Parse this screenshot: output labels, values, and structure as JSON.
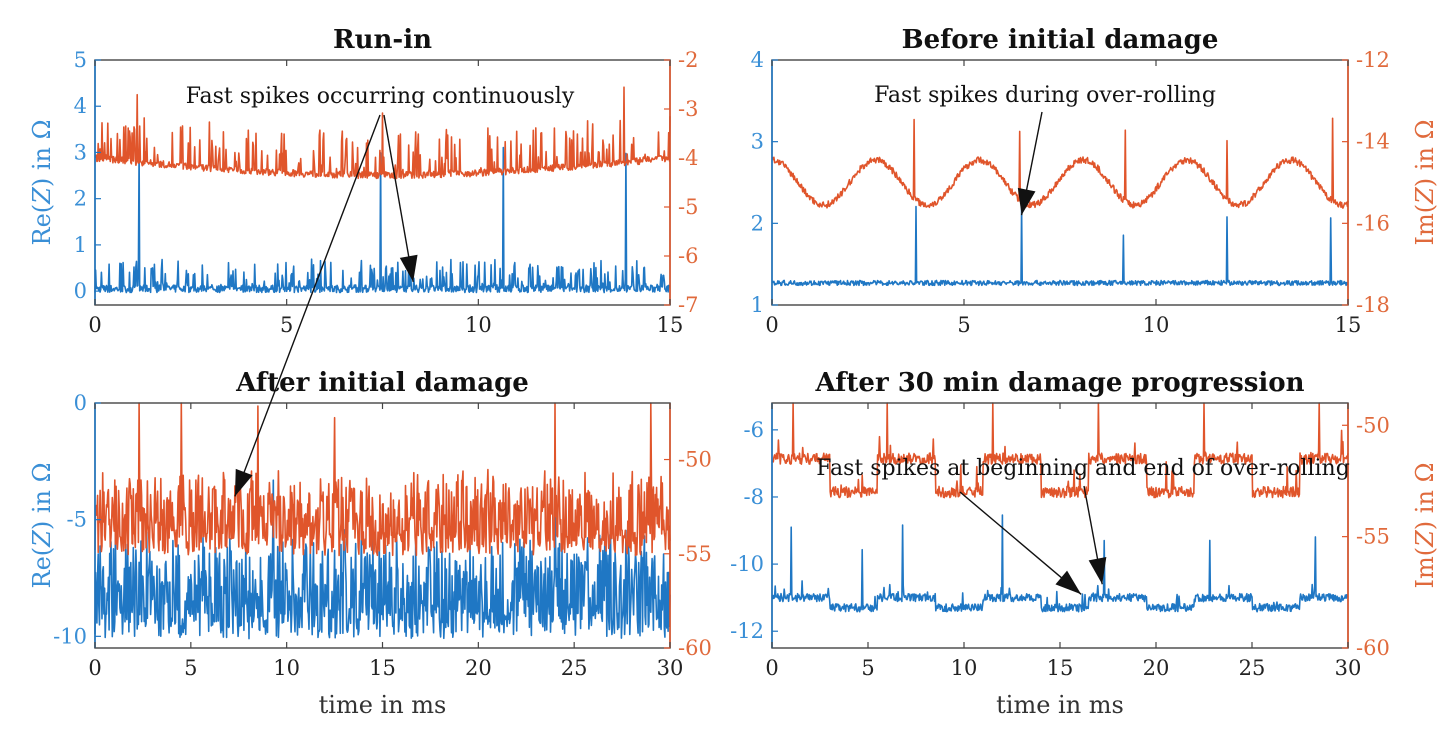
{
  "colors": {
    "left": "#1f77c4",
    "right": "#e0552b",
    "left_tick": "#3a8fd6",
    "right_tick": "#e06a3c",
    "frame": "#444444"
  },
  "chart_data": [
    {
      "type": "line",
      "title": "Run-in",
      "xlabel": "",
      "ylabel_left": "Re(Z) in Ω",
      "ylabel_right": "",
      "xlim": [
        0,
        15
      ],
      "xticks": [
        "0",
        "5",
        "10",
        "15"
      ],
      "ylim_left": [
        -0.3,
        5
      ],
      "yticks_left": [
        "0",
        "1",
        "2",
        "3",
        "4",
        "5"
      ],
      "ylim_right": [
        -7,
        -2
      ],
      "yticks_right": [
        "-7",
        "-6",
        "-5",
        "-4",
        "-3",
        "-2"
      ],
      "series": [
        {
          "name": "Re(Z)",
          "axis": "left",
          "base": 0.05,
          "noise": 0.08,
          "spike_rate": 0.25,
          "spike_amp": 0.6,
          "big_spikes": [
            [
              1.15,
              2.9
            ],
            [
              7.45,
              2.9
            ],
            [
              10.65,
              2.7
            ],
            [
              13.85,
              2.9
            ]
          ]
        },
        {
          "name": "Im(Z)",
          "axis": "right",
          "base": -4.0,
          "noise": 0.07,
          "spike_rate": 0.2,
          "spike_amp": 0.9,
          "dip": -0.35,
          "big_spikes": [
            [
              1.1,
              1.4
            ],
            [
              7.5,
              1.3
            ],
            [
              13.8,
              1.6
            ],
            [
              4.2,
              0.8
            ]
          ]
        }
      ],
      "annotation": {
        "text": "Fast spikes occurring continuously",
        "point": [
          8.3,
          0.2
        ]
      }
    },
    {
      "type": "line",
      "title": "Before initial damage",
      "xlabel": "",
      "ylabel_left": "",
      "ylabel_right": "Im(Z) in Ω",
      "xlim": [
        0,
        15
      ],
      "xticks": [
        "0",
        "5",
        "10",
        "15"
      ],
      "ylim_left": [
        1,
        4
      ],
      "yticks_left": [
        "1",
        "2",
        "3",
        "4"
      ],
      "ylim_right": [
        -18,
        -12
      ],
      "yticks_right": [
        "-18",
        "-16",
        "-14",
        "-12"
      ],
      "series": [
        {
          "name": "Re(Z)",
          "axis": "left",
          "base": 1.27,
          "noise": 0.03,
          "spike_rate": 0.0,
          "spike_amp": 0.05,
          "big_spikes": [
            [
              3.75,
              0.95
            ],
            [
              6.5,
              0.95
            ],
            [
              9.15,
              0.6
            ],
            [
              11.85,
              0.8
            ],
            [
              14.55,
              0.8
            ]
          ]
        },
        {
          "name": "Im(Z)",
          "axis": "right",
          "base": -15.0,
          "noise": 0.08,
          "spike_rate": 0.0,
          "spike_amp": 0.2,
          "wave": 0.55,
          "big_spikes": [
            [
              3.7,
              2.0
            ],
            [
              6.45,
              1.6
            ],
            [
              9.2,
              1.7
            ],
            [
              11.85,
              1.5
            ],
            [
              14.6,
              2.1
            ]
          ]
        }
      ],
      "annotation": {
        "text": "Fast spikes during over-rolling",
        "point": [
          6.5,
          2.1
        ]
      }
    },
    {
      "type": "line",
      "title": "After initial damage",
      "xlabel": "time in ms",
      "ylabel_left": "Re(Z) in Ω",
      "ylabel_right": "",
      "xlim": [
        0,
        30
      ],
      "xticks": [
        "0",
        "5",
        "10",
        "15",
        "20",
        "25",
        "30"
      ],
      "ylim_left": [
        -10.5,
        0
      ],
      "yticks_left": [
        "-10",
        "-5",
        "0"
      ],
      "ylim_right": [
        -60,
        -47
      ],
      "yticks_right": [
        "-60",
        "-55",
        "-50"
      ],
      "series": [
        {
          "name": "Re(Z)",
          "axis": "left",
          "base": -9.5,
          "noise": 0.6,
          "spike_rate": 0.7,
          "spike_amp": 3.5,
          "big_spikes": [
            [
              9.3,
              4.5
            ],
            [
              13.0,
              4.0
            ],
            [
              24.0,
              5.0
            ],
            [
              18.5,
              3.5
            ]
          ]
        },
        {
          "name": "Im(Z)",
          "axis": "right",
          "base": -54.5,
          "noise": 0.6,
          "spike_rate": 0.7,
          "spike_amp": 3.5,
          "big_spikes": [
            [
              2.3,
              7.5
            ],
            [
              4.5,
              6.5
            ],
            [
              8.5,
              6.8
            ],
            [
              12.5,
              5.5
            ],
            [
              24.0,
              7.5
            ],
            [
              29.0,
              7.0
            ]
          ]
        }
      ],
      "annotation": {
        "text": "",
        "point": [
          7.3,
          -4.0
        ]
      }
    },
    {
      "type": "line",
      "title": "After 30 min damage progression",
      "xlabel": "time in ms",
      "ylabel_left": "",
      "ylabel_right": "Im(Z) in Ω",
      "xlim": [
        0,
        30
      ],
      "xticks": [
        "0",
        "5",
        "10",
        "15",
        "20",
        "25",
        "30"
      ],
      "ylim_left": [
        -12.5,
        -5.2
      ],
      "yticks_left": [
        "-12",
        "-10",
        "-8",
        "-6"
      ],
      "ylim_right": [
        -60,
        -49
      ],
      "yticks_right": [
        "-60",
        "-55",
        "-50"
      ],
      "series": [
        {
          "name": "Re(Z)",
          "axis": "left",
          "base": -11.3,
          "noise": 0.12,
          "spike_rate": 0.05,
          "spike_amp": 0.5,
          "blocks": 1.2,
          "big_spikes": [
            [
              1.0,
              2.0
            ],
            [
              4.7,
              1.8
            ],
            [
              6.8,
              2.2
            ],
            [
              12.0,
              2.5
            ],
            [
              17.3,
              1.8
            ],
            [
              22.8,
              1.8
            ],
            [
              28.3,
              1.8
            ]
          ]
        },
        {
          "name": "Im(Z)",
          "axis": "right",
          "base": -53.0,
          "noise": 0.25,
          "spike_rate": 0.05,
          "spike_amp": 1.2,
          "blocks": 2.5,
          "big_spikes": [
            [
              1.1,
              4.0
            ],
            [
              6.0,
              4.5
            ],
            [
              11.5,
              5.0
            ],
            [
              17.0,
              4.5
            ],
            [
              22.5,
              4.0
            ],
            [
              28.5,
              4.5
            ]
          ]
        }
      ],
      "annotation": {
        "text": "Fast spikes at beginning and end of over-rolling",
        "point": [
          17.2,
          -10.6
        ]
      }
    }
  ]
}
